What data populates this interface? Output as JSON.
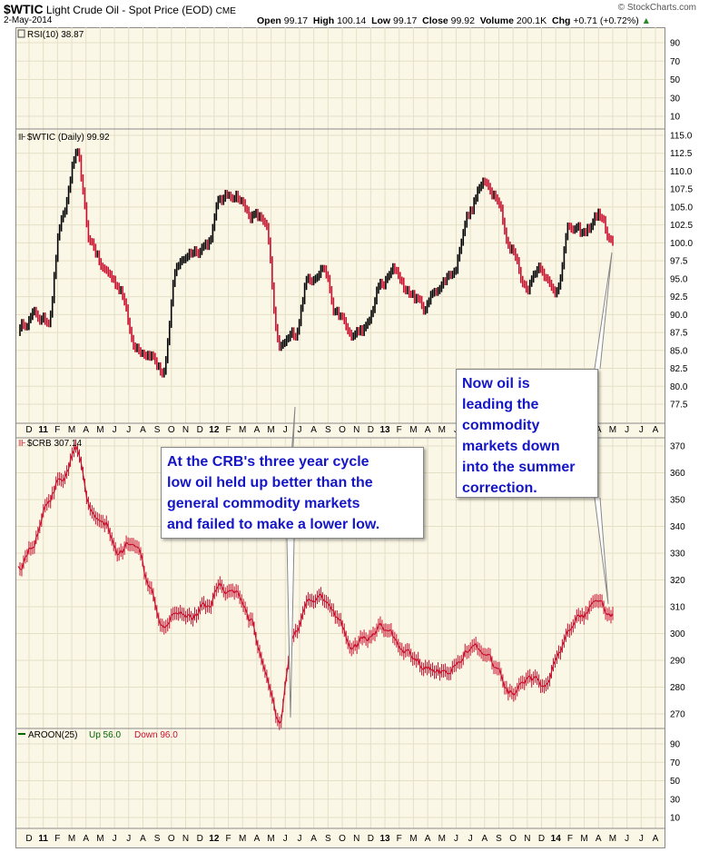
{
  "header": {
    "symbol": "$WTIC",
    "description": "Light Crude Oil - Spot Price (EOD)",
    "exchange": "CME",
    "date": "2-May-2014",
    "open_label": "Open",
    "open": "99.17",
    "high_label": "High",
    "high": "100.14",
    "low_label": "Low",
    "low": "99.17",
    "close_label": "Close",
    "close": "99.92",
    "volume_label": "Volume",
    "volume": "200.1K",
    "chg_label": "Chg",
    "chg": "+0.71 (+0.72%)",
    "source": "© StockCharts.com"
  },
  "panels": {
    "rsi": {
      "label": "RSI(10) 38.87",
      "ticks": [
        "90",
        "70",
        "50",
        "30",
        "10"
      ]
    },
    "wtic": {
      "label": "$WTIC (Daily) 99.92",
      "ticks": [
        "115.0",
        "112.5",
        "110.0",
        "107.5",
        "105.0",
        "102.5",
        "100.0",
        "97.5",
        "95.0",
        "92.5",
        "90.0",
        "87.5",
        "85.0",
        "82.5",
        "80.0",
        "77.5"
      ]
    },
    "crb": {
      "label": "$CRB 307.14",
      "ticks": [
        "370",
        "360",
        "350",
        "340",
        "330",
        "320",
        "310",
        "300",
        "290",
        "280",
        "270"
      ]
    },
    "aroon": {
      "label": "AROON(25)",
      "up_label": "Up 56.0",
      "down_label": "Down 96.0",
      "ticks": [
        "90",
        "70",
        "50",
        "30",
        "10"
      ]
    }
  },
  "x_axis": {
    "labels": [
      "D",
      "11",
      "F",
      "M",
      "A",
      "M",
      "J",
      "J",
      "A",
      "S",
      "O",
      "N",
      "D",
      "12",
      "F",
      "M",
      "A",
      "M",
      "J",
      "J",
      "A",
      "S",
      "O",
      "N",
      "D",
      "13",
      "F",
      "M",
      "A",
      "M",
      "J",
      "J",
      "A",
      "S",
      "O",
      "N",
      "D",
      "14",
      "F",
      "M",
      "A",
      "M",
      "J",
      "J",
      "A"
    ]
  },
  "annotations": {
    "crb_note": [
      "At the CRB's three year cycle",
      "low oil held up better than the",
      "general commodity markets",
      "and failed to make a lower low."
    ],
    "oil_note": [
      "Now oil is",
      "leading the",
      "commodity",
      "markets down",
      "into the summer",
      "correction."
    ]
  },
  "colors": {
    "wtic_up": "#000000",
    "wtic_down": "#c8102e",
    "crb": "#c8102e",
    "note_text": "#1515c8",
    "aroon_up": "#006400",
    "aroon_down": "#c8102e"
  },
  "chart_data": [
    {
      "type": "line",
      "title": "$WTIC (Daily) 99.92",
      "ylim": [
        75.5,
        116.0
      ],
      "x": [
        "Dec-10",
        "Jan-11",
        "Feb-11",
        "Mar-11",
        "Apr-11",
        "May-11",
        "Jun-11",
        "Jul-11",
        "Aug-11",
        "Sep-11",
        "Oct-11",
        "Nov-11",
        "Dec-11",
        "Jan-12",
        "Feb-12",
        "Mar-12",
        "Apr-12",
        "May-12",
        "Jun-12",
        "Jul-12",
        "Aug-12",
        "Sep-12",
        "Oct-12",
        "Nov-12",
        "Dec-12",
        "Jan-13",
        "Feb-13",
        "Mar-13",
        "Apr-13",
        "May-13",
        "Jun-13",
        "Jul-13",
        "Aug-13",
        "Sep-13",
        "Oct-13",
        "Nov-13",
        "Dec-13",
        "Jan-14",
        "Feb-14",
        "Mar-14",
        "Apr-14",
        "May-14"
      ],
      "series": [
        {
          "values": [
            88,
            90,
            89,
            103,
            112,
            100,
            96,
            94,
            86,
            85,
            82,
            97,
            99,
            100,
            106,
            107,
            104,
            103,
            85,
            87,
            95,
            97,
            90,
            87,
            88,
            94,
            96,
            93,
            91,
            94,
            96,
            104,
            108,
            107,
            99,
            94,
            97,
            93,
            102,
            101,
            104,
            99.9
          ]
        }
      ]
    },
    {
      "type": "line",
      "title": "$CRB 307.14",
      "ylim": [
        265,
        372
      ],
      "x": [
        "Dec-10",
        "Jan-11",
        "Feb-11",
        "Mar-11",
        "Apr-11",
        "May-11",
        "Jun-11",
        "Jul-11",
        "Aug-11",
        "Sep-11",
        "Oct-11",
        "Nov-11",
        "Dec-11",
        "Jan-12",
        "Feb-12",
        "Mar-12",
        "Apr-12",
        "May-12",
        "Jun-12",
        "Jul-12",
        "Aug-12",
        "Sep-12",
        "Oct-12",
        "Nov-12",
        "Dec-12",
        "Jan-13",
        "Feb-13",
        "Mar-13",
        "Apr-13",
        "May-13",
        "Jun-13",
        "Jul-13",
        "Aug-13",
        "Sep-13",
        "Oct-13",
        "Nov-13",
        "Dec-13",
        "Jan-14",
        "Feb-14",
        "Mar-14",
        "Apr-14",
        "May-14"
      ],
      "series": [
        {
          "values": [
            325,
            333,
            350,
            358,
            368,
            345,
            340,
            330,
            336,
            320,
            305,
            310,
            307,
            310,
            318,
            315,
            305,
            287,
            268,
            300,
            310,
            312,
            306,
            296,
            298,
            302,
            298,
            292,
            288,
            285,
            287,
            295,
            293,
            287,
            278,
            282,
            281,
            288,
            299,
            307,
            311,
            307.1
          ]
        }
      ]
    }
  ]
}
